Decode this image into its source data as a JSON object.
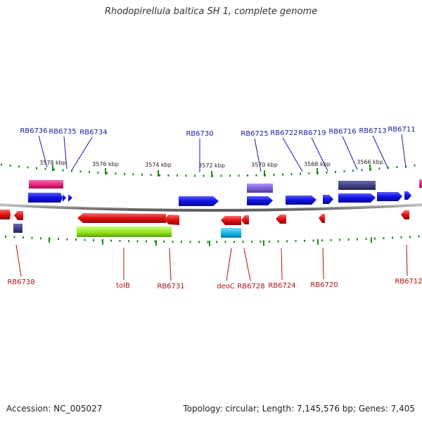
{
  "title": "Rhodopirellula baltica SH 1, complete genome",
  "footer": {
    "accession": "Accession: NC_005027",
    "summary": "Topology: circular; Length: 7,145,576 bp; Genes: 7,405"
  },
  "colors": {
    "background": "#ffffff",
    "backbone": "#8c8c8c",
    "tick": "#1f8a1f",
    "forward_gene": "#1010e0",
    "reverse_gene": "#e01010",
    "forward_label": "#1a1aa0",
    "reverse_label": "#b01010",
    "pink_feature": "#e0207a",
    "violet_feature": "#7a5ad0",
    "slate_feature": "#3d3d80",
    "lime_feature": "#90e020",
    "cyan_feature": "#10b0e0"
  },
  "scale_labels": [
    "3578 kbp",
    "3576 kbp",
    "3574 kbp",
    "3572 kbp",
    "3570 kbp",
    "3568 kbp",
    "3566 kbp"
  ],
  "forward_genes": [
    "RB6736",
    "RB6735",
    "RB6734",
    "RB6730",
    "RB6725",
    "RB6722",
    "RB6719",
    "RB6716",
    "RB6713",
    "RB6711"
  ],
  "reverse_genes": [
    "RB6738",
    "tolB",
    "RB6731",
    "deoC",
    "RB6728",
    "RB6724",
    "RB6720",
    "RB6712"
  ]
}
